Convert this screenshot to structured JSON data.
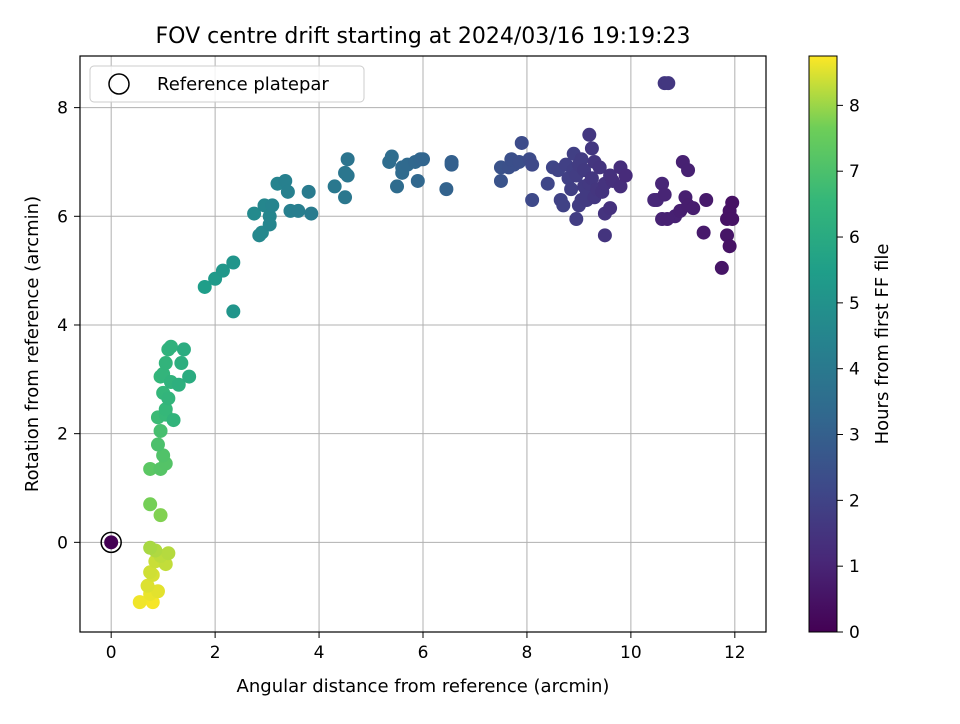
{
  "chart_data": {
    "type": "scatter",
    "title": "FOV centre drift starting at 2024/03/16 19:19:23",
    "xlabel": "Angular distance from reference (arcmin)",
    "ylabel": "Rotation from reference (arcmin)",
    "xlim": [
      -0.6,
      12.6
    ],
    "ylim": [
      -1.65,
      8.95
    ],
    "xticks": [
      0,
      2,
      4,
      6,
      8,
      10,
      12
    ],
    "xtick_labels": [
      "0",
      "2",
      "4",
      "6",
      "8",
      "10",
      "12"
    ],
    "yticks": [
      0,
      2,
      4,
      6,
      8
    ],
    "ytick_labels": [
      "0",
      "2",
      "4",
      "6",
      "8"
    ],
    "grid": true,
    "colormap": "viridis",
    "colorbar": {
      "label": "Hours from first FF file",
      "range": [
        0,
        8.75
      ],
      "ticks": [
        0,
        1,
        2,
        3,
        4,
        5,
        6,
        7,
        8
      ],
      "tick_labels": [
        "0",
        "1",
        "2",
        "3",
        "4",
        "5",
        "6",
        "7",
        "8"
      ]
    },
    "legend": {
      "position": "top-left",
      "entries": [
        "Reference platepar"
      ]
    },
    "reference_point": {
      "x": 0,
      "y": 0
    },
    "points": [
      [
        0.0,
        0.0,
        0.0
      ],
      [
        10.65,
        8.45,
        1.6
      ],
      [
        10.72,
        8.45,
        1.6
      ],
      [
        11.0,
        7.0,
        0.9
      ],
      [
        11.1,
        6.85,
        0.9
      ],
      [
        11.05,
        6.35,
        0.85
      ],
      [
        11.1,
        6.2,
        0.8
      ],
      [
        11.2,
        6.15,
        0.8
      ],
      [
        11.45,
        6.3,
        0.7
      ],
      [
        10.95,
        6.1,
        0.85
      ],
      [
        10.85,
        6.0,
        0.9
      ],
      [
        10.7,
        5.95,
        0.9
      ],
      [
        10.6,
        5.95,
        0.95
      ],
      [
        11.4,
        5.7,
        0.7
      ],
      [
        11.85,
        5.65,
        0.55
      ],
      [
        11.75,
        5.05,
        0.55
      ],
      [
        11.9,
        5.45,
        0.5
      ],
      [
        11.95,
        6.25,
        0.45
      ],
      [
        11.9,
        6.1,
        0.5
      ],
      [
        11.85,
        5.95,
        0.5
      ],
      [
        11.95,
        5.95,
        0.5
      ],
      [
        10.6,
        6.6,
        1.05
      ],
      [
        10.65,
        6.4,
        1.0
      ],
      [
        10.5,
        6.3,
        1.1
      ],
      [
        10.45,
        6.3,
        1.1
      ],
      [
        9.9,
        6.75,
        1.2
      ],
      [
        9.8,
        6.55,
        1.3
      ],
      [
        9.8,
        6.9,
        1.3
      ],
      [
        9.65,
        6.65,
        1.35
      ],
      [
        9.6,
        6.75,
        1.4
      ],
      [
        9.5,
        6.6,
        1.45
      ],
      [
        9.45,
        6.45,
        1.5
      ],
      [
        9.6,
        6.15,
        1.4
      ],
      [
        9.5,
        6.05,
        1.45
      ],
      [
        9.5,
        5.65,
        1.5
      ],
      [
        9.4,
        6.9,
        1.5
      ],
      [
        9.3,
        7.0,
        1.55
      ],
      [
        9.2,
        7.5,
        1.6
      ],
      [
        9.25,
        7.25,
        1.6
      ],
      [
        9.2,
        6.6,
        1.65
      ],
      [
        9.15,
        6.3,
        1.7
      ],
      [
        9.1,
        6.85,
        1.7
      ],
      [
        9.05,
        7.05,
        1.75
      ],
      [
        9.0,
        6.95,
        1.75
      ],
      [
        8.95,
        6.75,
        1.8
      ],
      [
        8.9,
        7.15,
        1.85
      ],
      [
        8.85,
        6.5,
        1.85
      ],
      [
        8.8,
        6.7,
        1.9
      ],
      [
        8.75,
        6.95,
        1.9
      ],
      [
        8.7,
        6.2,
        1.95
      ],
      [
        8.65,
        6.3,
        1.95
      ],
      [
        8.6,
        6.85,
        2.0
      ],
      [
        8.5,
        6.9,
        2.05
      ],
      [
        8.4,
        6.6,
        2.1
      ],
      [
        8.95,
        5.95,
        1.8
      ],
      [
        9.05,
        6.3,
        1.75
      ],
      [
        9.15,
        6.4,
        1.7
      ],
      [
        9.3,
        6.35,
        1.6
      ],
      [
        9.35,
        6.5,
        1.55
      ],
      [
        9.1,
        6.55,
        1.7
      ],
      [
        9.0,
        6.2,
        1.75
      ],
      [
        9.25,
        6.7,
        1.6
      ],
      [
        8.9,
        6.85,
        1.85
      ],
      [
        8.1,
        6.95,
        2.2
      ],
      [
        8.05,
        7.05,
        2.25
      ],
      [
        7.9,
        7.35,
        2.3
      ],
      [
        7.85,
        7.0,
        2.35
      ],
      [
        7.75,
        6.95,
        2.4
      ],
      [
        7.7,
        7.05,
        2.4
      ],
      [
        7.65,
        6.9,
        2.45
      ],
      [
        7.5,
        6.9,
        2.5
      ],
      [
        7.5,
        6.65,
        2.55
      ],
      [
        8.1,
        6.3,
        2.2
      ],
      [
        6.55,
        7.0,
        3.0
      ],
      [
        6.55,
        6.95,
        3.0
      ],
      [
        6.45,
        6.5,
        3.1
      ],
      [
        6.0,
        7.05,
        3.2
      ],
      [
        5.95,
        7.05,
        3.25
      ],
      [
        5.85,
        7.0,
        3.3
      ],
      [
        5.9,
        6.65,
        3.3
      ],
      [
        5.7,
        6.95,
        3.35
      ],
      [
        5.6,
        6.9,
        3.4
      ],
      [
        5.6,
        6.8,
        3.4
      ],
      [
        5.5,
        6.55,
        3.45
      ],
      [
        5.4,
        7.1,
        3.5
      ],
      [
        5.35,
        7.0,
        3.5
      ],
      [
        4.55,
        7.05,
        3.8
      ],
      [
        4.5,
        6.8,
        3.85
      ],
      [
        4.55,
        6.75,
        3.85
      ],
      [
        4.5,
        6.35,
        3.9
      ],
      [
        4.3,
        6.55,
        3.95
      ],
      [
        3.85,
        6.05,
        4.1
      ],
      [
        3.8,
        6.45,
        4.1
      ],
      [
        3.6,
        6.1,
        4.2
      ],
      [
        3.45,
        6.1,
        4.25
      ],
      [
        3.35,
        6.65,
        4.3
      ],
      [
        3.4,
        6.45,
        4.3
      ],
      [
        3.2,
        6.6,
        4.4
      ],
      [
        3.1,
        6.2,
        4.45
      ],
      [
        3.05,
        6.0,
        4.5
      ],
      [
        3.05,
        5.85,
        4.5
      ],
      [
        2.95,
        6.2,
        4.55
      ],
      [
        2.9,
        5.7,
        4.6
      ],
      [
        2.85,
        5.65,
        4.6
      ],
      [
        2.75,
        6.05,
        4.7
      ],
      [
        2.35,
        5.15,
        5.1
      ],
      [
        2.15,
        5.0,
        5.2
      ],
      [
        2.0,
        4.85,
        5.3
      ],
      [
        1.8,
        4.7,
        5.45
      ],
      [
        2.35,
        4.25,
        5.1
      ],
      [
        1.4,
        3.55,
        6.1
      ],
      [
        1.35,
        3.3,
        6.15
      ],
      [
        1.5,
        3.05,
        6.05
      ],
      [
        1.3,
        2.9,
        6.2
      ],
      [
        1.15,
        3.6,
        6.3
      ],
      [
        1.1,
        3.55,
        6.35
      ],
      [
        1.05,
        3.3,
        6.4
      ],
      [
        1.0,
        3.1,
        6.45
      ],
      [
        0.95,
        3.05,
        6.5
      ],
      [
        1.15,
        2.95,
        6.35
      ],
      [
        1.0,
        2.75,
        6.5
      ],
      [
        1.1,
        2.65,
        6.45
      ],
      [
        1.2,
        2.25,
        6.4
      ],
      [
        1.05,
        2.45,
        6.55
      ],
      [
        1.05,
        2.35,
        6.6
      ],
      [
        0.9,
        2.3,
        6.7
      ],
      [
        0.95,
        2.05,
        6.9
      ],
      [
        0.9,
        1.8,
        7.0
      ],
      [
        1.0,
        1.6,
        7.1
      ],
      [
        1.05,
        1.45,
        7.15
      ],
      [
        0.95,
        1.35,
        7.2
      ],
      [
        0.75,
        1.35,
        7.3
      ],
      [
        0.75,
        0.7,
        7.7
      ],
      [
        0.95,
        0.5,
        7.8
      ],
      [
        0.75,
        -0.1,
        8.1
      ],
      [
        0.85,
        -0.15,
        8.15
      ],
      [
        1.1,
        -0.2,
        8.2
      ],
      [
        0.95,
        -0.25,
        8.25
      ],
      [
        1.05,
        -0.4,
        8.3
      ],
      [
        0.85,
        -0.35,
        8.35
      ],
      [
        0.75,
        -0.55,
        8.4
      ],
      [
        0.8,
        -0.6,
        8.45
      ],
      [
        0.7,
        -0.8,
        8.5
      ],
      [
        0.9,
        -0.9,
        8.55
      ],
      [
        0.75,
        -0.95,
        8.6
      ],
      [
        0.55,
        -1.1,
        8.65
      ],
      [
        0.8,
        -1.1,
        8.7
      ]
    ]
  }
}
